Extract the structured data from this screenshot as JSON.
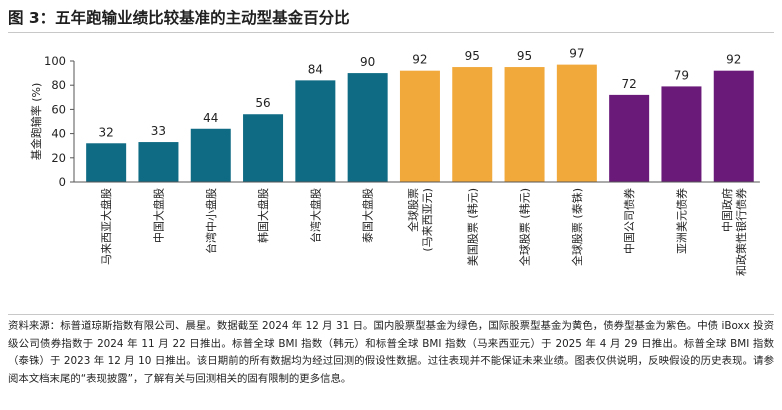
{
  "title": "图 3：五年跑输业绩比较基准的主动型基金百分比",
  "chart_data": {
    "type": "bar",
    "title": "图 3：五年跑输业绩比较基准的主动型基金百分比",
    "ylabel": "基金跑输率 (%)",
    "xlabel": "",
    "ylim": [
      0,
      100
    ],
    "yticks": [
      0,
      20,
      40,
      60,
      80,
      100
    ],
    "grid": false,
    "categories": [
      [
        "马来西亚大盘股"
      ],
      [
        "中国大盘股"
      ],
      [
        "台湾中小盘股"
      ],
      [
        "韩国大盘股"
      ],
      [
        "台湾大盘股"
      ],
      [
        "泰国大盘股"
      ],
      [
        "全球股票",
        "(马来西亚元)"
      ],
      [
        "美国股票 (韩元)"
      ],
      [
        "全球股票 (韩元)"
      ],
      [
        "全球股票 (泰铢)"
      ],
      [
        "中国公司债券"
      ],
      [
        "亚洲美元债券"
      ],
      [
        "中国政府",
        "和政策性银行债券"
      ]
    ],
    "values": [
      32,
      33,
      44,
      56,
      84,
      90,
      92,
      95,
      95,
      97,
      72,
      79,
      92
    ],
    "groups": [
      "股票",
      "股票",
      "股票",
      "股票",
      "股票",
      "股票",
      "国际股票",
      "国际股票",
      "国际股票",
      "国际股票",
      "债券",
      "债券",
      "债券"
    ],
    "group_colors": {
      "股票": "#0f6b84",
      "国际股票": "#f2a93b",
      "债券": "#6a1b7a"
    }
  },
  "source_note": "资料来源：标普道琼斯指数有限公司、晨星。数据截至 2024 年 12 月 31 日。国内股票型基金为绿色，国际股票型基金为黄色，债券型基金为紫色。中债 iBoxx 投资级公司债券指数于 2024 年 11 月 22 日推出。标普全球 BMI 指数（韩元）和标普全球 BMI 指数（马来西亚元）于 2025 年 4 月 29 日推出。标普全球 BMI 指数（泰铢）于 2023 年 12 月 10 日推出。该日期前的所有数据均为经过回测的假设性数据。过往表现并不能保证未来业绩。图表仅供说明，反映假设的历史表现。请参阅本文档末尾的“表现披露”，了解有关与回测相关的固有限制的更多信息。"
}
